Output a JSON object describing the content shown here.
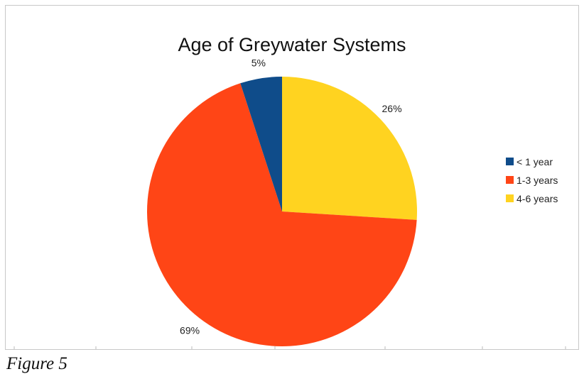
{
  "caption": "Figure 5",
  "chart_data": {
    "type": "pie",
    "title": "Age of Greywater Systems",
    "categories": [
      "< 1 year",
      "1-3 years",
      "4-6 years"
    ],
    "values": [
      5,
      69,
      26
    ],
    "data_labels": [
      "5%",
      "69%",
      "26%"
    ],
    "colors": [
      "#0f4c8a",
      "#ff4516",
      "#ffd320"
    ],
    "legend_position": "right"
  }
}
